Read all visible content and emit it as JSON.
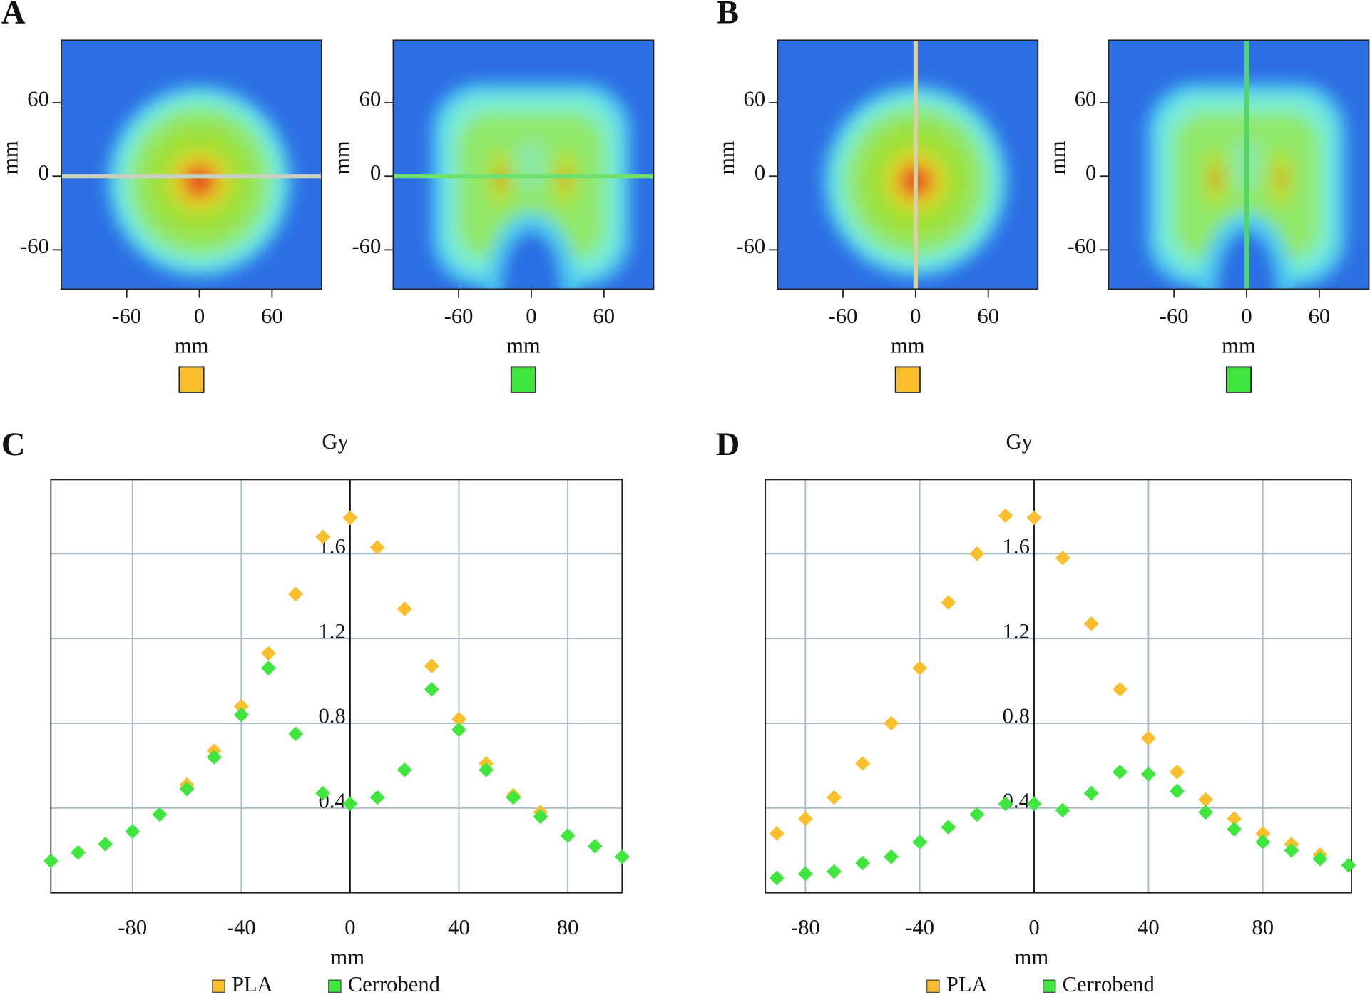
{
  "chart_data": [
    {
      "type": "heatmap",
      "panel_label": "A",
      "xlabel": "mm",
      "ylabel": "mm",
      "xlim": [
        -114,
        101
      ],
      "ylim": [
        -92,
        111
      ],
      "xticks": [
        -60,
        0,
        60
      ],
      "yticks": [
        -60,
        0,
        60
      ],
      "legend_color": "#fbbf2e"
    },
    {
      "type": "heatmap",
      "xlabel": "mm",
      "ylabel": "mm",
      "xlim": [
        -114,
        101
      ],
      "ylim": [
        -92,
        111
      ],
      "xticks": [
        -60,
        0,
        60
      ],
      "yticks": [
        -60,
        0,
        60
      ],
      "legend_color": "#3ee63e"
    },
    {
      "type": "heatmap",
      "panel_label": "B",
      "xlabel": "mm",
      "ylabel": "mm",
      "xlim": [
        -114,
        101
      ],
      "ylim": [
        -92,
        111
      ],
      "xticks": [
        -60,
        0,
        60
      ],
      "yticks": [
        -60,
        0,
        60
      ],
      "legend_color": "#fbbf2e"
    },
    {
      "type": "heatmap",
      "xlabel": "mm",
      "ylabel": "mm",
      "xlim": [
        -114,
        101
      ],
      "ylim": [
        -92,
        111
      ],
      "xticks": [
        -60,
        0,
        60
      ],
      "yticks": [
        -60,
        0,
        60
      ],
      "legend_color": "#3ee63e"
    },
    {
      "type": "scatter",
      "panel_label": "C",
      "ylabel": "Gy",
      "xlabel": "mm",
      "x": [
        -110,
        -100,
        -90,
        -80,
        -70,
        -60,
        -50,
        -40,
        -30,
        -20,
        -10,
        0,
        10,
        20,
        30,
        40,
        50,
        60,
        70,
        80,
        90,
        100
      ],
      "series": [
        {
          "name": "PLA",
          "color": "#fbbf2e",
          "values": [
            null,
            null,
            null,
            null,
            null,
            0.51,
            0.67,
            0.88,
            1.13,
            1.41,
            1.68,
            1.77,
            1.63,
            1.34,
            1.07,
            0.82,
            0.61,
            0.46,
            0.38,
            null,
            null,
            null
          ]
        },
        {
          "name": "Cerrobend",
          "color": "#3ee63e",
          "values": [
            0.15,
            0.19,
            0.23,
            0.29,
            0.37,
            0.49,
            0.64,
            0.84,
            1.06,
            0.75,
            0.47,
            0.42,
            0.45,
            0.58,
            0.96,
            0.77,
            0.58,
            0.45,
            0.36,
            0.27,
            0.22,
            0.17
          ]
        }
      ],
      "xlim": [
        -110,
        100
      ],
      "ylim": [
        0,
        1.95
      ],
      "xticks": [
        -80,
        -40,
        0,
        40,
        80
      ],
      "yticks": [
        0.4,
        0.8,
        1.2,
        1.6
      ],
      "grid": true,
      "legend": "bottom"
    },
    {
      "type": "scatter",
      "panel_label": "D",
      "ylabel": "Gy",
      "xlabel": "mm",
      "x": [
        -90,
        -80,
        -70,
        -60,
        -50,
        -40,
        -30,
        -20,
        -10,
        0,
        10,
        20,
        30,
        40,
        50,
        60,
        70,
        80,
        90,
        100,
        110
      ],
      "series": [
        {
          "name": "PLA",
          "color": "#fbbf2e",
          "values": [
            0.28,
            0.35,
            0.45,
            0.61,
            0.8,
            1.06,
            1.37,
            1.6,
            1.78,
            1.77,
            1.58,
            1.27,
            0.96,
            0.73,
            0.57,
            0.44,
            0.35,
            0.28,
            0.23,
            0.18,
            null
          ]
        },
        {
          "name": "Cerrobend",
          "color": "#3ee63e",
          "values": [
            0.07,
            0.09,
            0.1,
            0.14,
            0.17,
            0.24,
            0.31,
            0.37,
            0.42,
            0.42,
            0.39,
            0.47,
            0.57,
            0.56,
            0.48,
            0.38,
            0.3,
            0.24,
            0.2,
            0.16,
            0.13
          ]
        }
      ],
      "xlim": [
        -94,
        111
      ],
      "ylim": [
        0,
        1.95
      ],
      "xticks": [
        -80,
        -40,
        0,
        40,
        80
      ],
      "yticks": [
        0.4,
        0.8,
        1.2,
        1.6
      ],
      "grid": true,
      "legend": "bottom"
    }
  ]
}
